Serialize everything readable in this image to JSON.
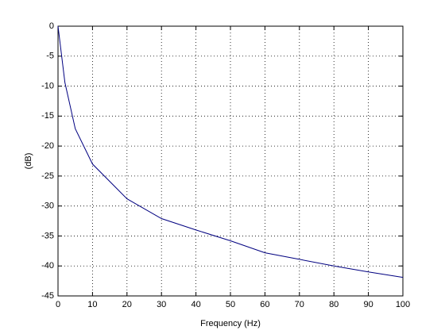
{
  "chart_data": {
    "type": "line",
    "xlabel": "Frequency (Hz)",
    "ylabel": "(dB)",
    "x": [
      0,
      2,
      5,
      10,
      20,
      30,
      40,
      50,
      60,
      70,
      80,
      90,
      100
    ],
    "series": [
      {
        "color": "#000080",
        "values": [
          0,
          -9.4,
          -17.1,
          -23.0,
          -28.8,
          -32.1,
          -34.0,
          -35.8,
          -37.8,
          -38.9,
          -40.0,
          -41.0,
          -41.9
        ]
      }
    ],
    "xlim": [
      0,
      100
    ],
    "xticks": [
      0,
      10,
      20,
      30,
      40,
      50,
      60,
      70,
      80,
      90,
      100
    ],
    "ylim": [
      -45,
      0
    ],
    "yticks": [
      0,
      -5,
      -10,
      -15,
      -20,
      -25,
      -30,
      -35,
      -40,
      -45
    ],
    "grid": true
  }
}
